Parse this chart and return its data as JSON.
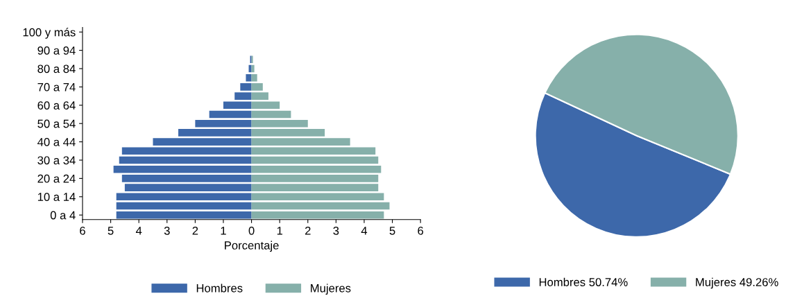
{
  "chart_data": [
    {
      "type": "bar",
      "orientation": "horizontal",
      "xlabel": "Porcentaje",
      "categories": [
        "100 y más",
        null,
        "90 a 94",
        null,
        "80 a 84",
        null,
        "70 a 74",
        null,
        "60 a 64",
        null,
        "50 a 54",
        null,
        "40 a 44",
        null,
        "30 a 34",
        null,
        "20 a 24",
        null,
        "10 a 14",
        null,
        "0 a 4"
      ],
      "series": [
        {
          "name": "Hombres",
          "color": "#3d68aa",
          "values": [
            0,
            0,
            0,
            -0.05,
            -0.1,
            -0.2,
            -0.4,
            -0.6,
            -1.0,
            -1.5,
            -2.0,
            -2.6,
            -3.5,
            -4.6,
            -4.7,
            -4.9,
            -4.6,
            -4.5,
            -4.8,
            -4.8,
            -4.8
          ]
        },
        {
          "name": "Mujeres",
          "color": "#86b0aa",
          "values": [
            0,
            0,
            0,
            0.05,
            0.1,
            0.2,
            0.4,
            0.6,
            1.0,
            1.4,
            2.0,
            2.6,
            3.5,
            4.4,
            4.5,
            4.6,
            4.5,
            4.5,
            4.7,
            4.9,
            4.7
          ]
        }
      ],
      "stacked": true,
      "xlim": [
        -6,
        6
      ],
      "xticks": [
        {
          "value": -6,
          "label": "6"
        },
        {
          "value": -5,
          "label": "5"
        },
        {
          "value": -4,
          "label": "4"
        },
        {
          "value": -3,
          "label": "3"
        },
        {
          "value": -2,
          "label": "2"
        },
        {
          "value": -1,
          "label": "1"
        },
        0,
        1,
        2,
        3,
        4,
        5,
        6
      ],
      "grid": false,
      "legend": "bottom"
    },
    {
      "type": "pie",
      "categories": [
        "Hombres",
        "Mujeres"
      ],
      "values": [
        50.74,
        49.26
      ],
      "value_labels": [
        "50.74%",
        "49.26%"
      ],
      "colors": [
        "#3d68aa",
        "#86b0aa"
      ],
      "legend": "bottom"
    }
  ]
}
